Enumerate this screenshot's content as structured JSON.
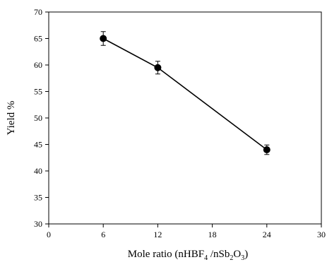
{
  "chart_data": {
    "type": "line",
    "title": "",
    "xlabel": {
      "parts": [
        {
          "text": "Mole ratio (nHBF",
          "sub": false
        },
        {
          "text": "4",
          "sub": true
        },
        {
          "text": " /nSb",
          "sub": false
        },
        {
          "text": "2",
          "sub": true
        },
        {
          "text": "O",
          "sub": false
        },
        {
          "text": "3",
          "sub": true
        },
        {
          "text": ")",
          "sub": false
        }
      ]
    },
    "ylabel": "Yield %",
    "xlim": [
      0,
      30
    ],
    "ylim": [
      30,
      70
    ],
    "x_ticks": [
      "0",
      "6",
      "12",
      "18",
      "24",
      "30"
    ],
    "y_ticks": [
      "30",
      "35",
      "40",
      "45",
      "50",
      "55",
      "60",
      "65",
      "70"
    ],
    "grid": false,
    "legend": "none",
    "series": [
      {
        "x": [
          6,
          12,
          24
        ],
        "y": [
          65.0,
          59.5,
          44.0
        ],
        "error": [
          1.3,
          1.2,
          0.9
        ],
        "marker": "filled-circle",
        "color": "#000000"
      }
    ]
  }
}
